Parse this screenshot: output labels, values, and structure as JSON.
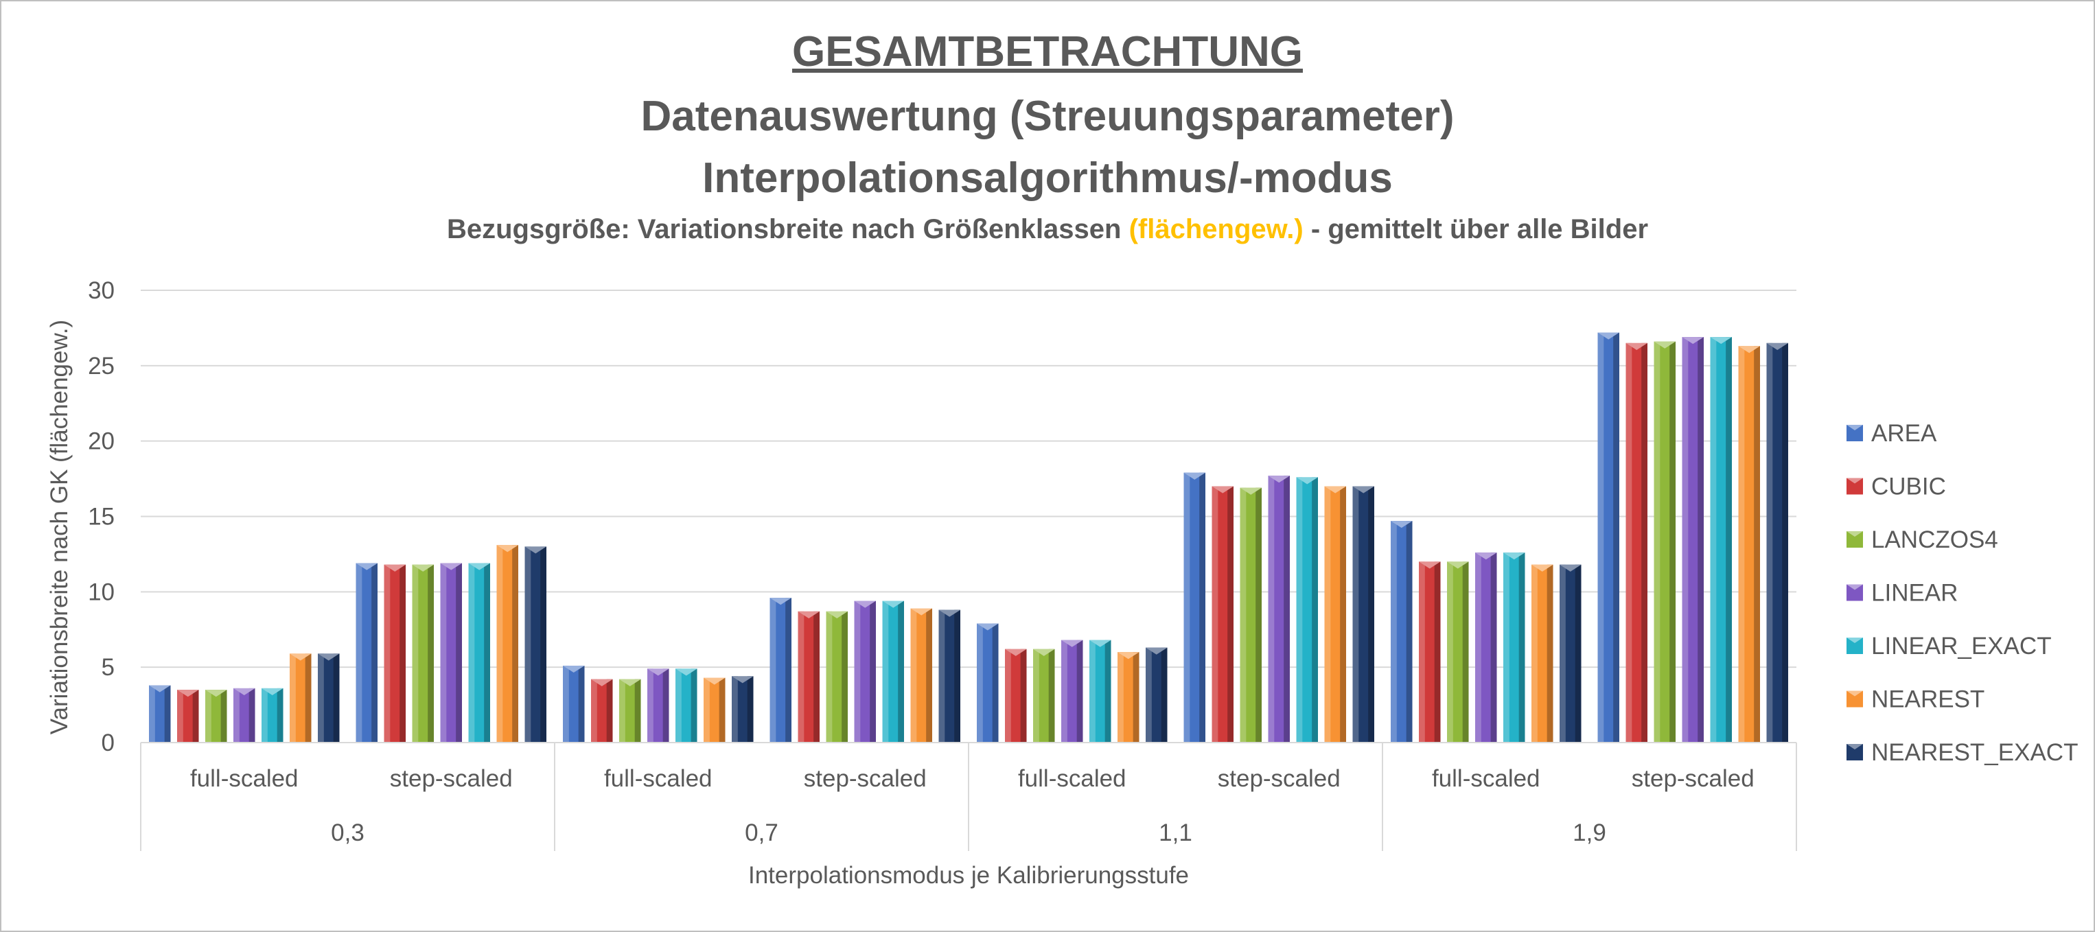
{
  "chart_data": {
    "type": "bar",
    "title_lines": [
      "GESAMTBETRACHTUNG",
      "Datenauswertung (Streuungsparameter)",
      "Interpolationsalgorithmus/-modus"
    ],
    "subtitle": {
      "prefix": "Bezugsgröße: Variationsbreite nach Größenklassen ",
      "highlight": "(flächengew.)",
      "suffix": " - gemittelt über alle Bilder",
      "highlight_color": "#ffc000"
    },
    "xlabel": "Interpolationsmodus je Kalibrierungsstufe",
    "ylabel": "Variationsbreite nach GK (flächengew.)",
    "ylim": [
      0,
      30
    ],
    "yticks": [
      0,
      5,
      10,
      15,
      20,
      25,
      30
    ],
    "grid": true,
    "legend_position": "right",
    "categories": [
      {
        "group": "0,3",
        "label": "full-scaled"
      },
      {
        "group": "0,3",
        "label": "step-scaled"
      },
      {
        "group": "0,7",
        "label": "full-scaled"
      },
      {
        "group": "0,7",
        "label": "step-scaled"
      },
      {
        "group": "1,1",
        "label": "full-scaled"
      },
      {
        "group": "1,1",
        "label": "step-scaled"
      },
      {
        "group": "1,9",
        "label": "full-scaled"
      },
      {
        "group": "1,9",
        "label": "step-scaled"
      }
    ],
    "groups": [
      "0,3",
      "0,7",
      "1,1",
      "1,9"
    ],
    "series": [
      {
        "name": "AREA",
        "color": "#4472c4",
        "values": [
          3.8,
          11.9,
          5.1,
          9.6,
          7.9,
          17.9,
          14.7,
          27.2
        ]
      },
      {
        "name": "CUBIC",
        "color": "#d03a3a",
        "values": [
          3.5,
          11.8,
          4.2,
          8.7,
          6.2,
          17.0,
          12.0,
          26.5
        ]
      },
      {
        "name": "LANCZOS4",
        "color": "#8fb83a",
        "values": [
          3.5,
          11.8,
          4.2,
          8.7,
          6.2,
          16.9,
          12.0,
          26.6
        ]
      },
      {
        "name": "LINEAR",
        "color": "#7e57c2",
        "values": [
          3.6,
          11.9,
          4.9,
          9.4,
          6.8,
          17.7,
          12.6,
          26.9
        ]
      },
      {
        "name": "LINEAR_EXACT",
        "color": "#24b2c8",
        "values": [
          3.6,
          11.9,
          4.9,
          9.4,
          6.8,
          17.6,
          12.6,
          26.9
        ]
      },
      {
        "name": "NEAREST",
        "color": "#f79233",
        "values": [
          5.9,
          13.1,
          4.3,
          8.9,
          6.0,
          17.0,
          11.8,
          26.3
        ]
      },
      {
        "name": "NEAREST_EXACT",
        "color": "#1f3b6a",
        "values": [
          5.9,
          13.0,
          4.4,
          8.8,
          6.3,
          17.0,
          11.8,
          26.5
        ]
      }
    ]
  }
}
